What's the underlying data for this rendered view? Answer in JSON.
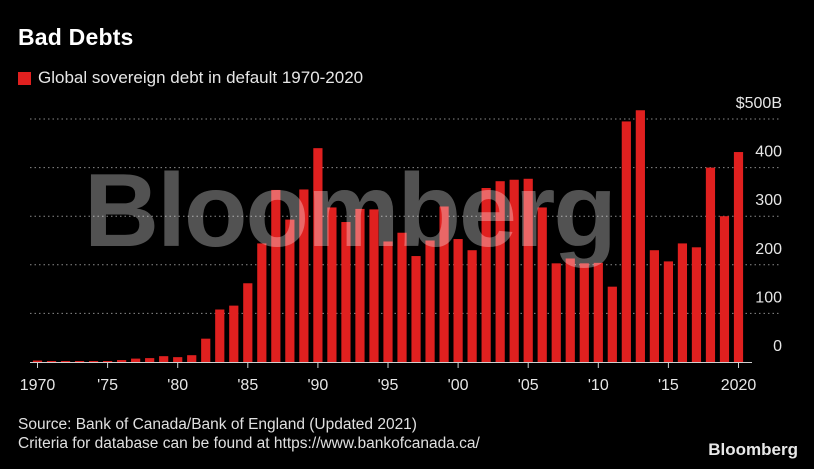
{
  "title": "Bad Debts",
  "watermark": "Bloomberg",
  "brand": "Bloomberg",
  "source_lines": [
    "Source: Bank of Canada/Bank of England (Updated 2021)",
    "Criteria for database can be found at https://www.bankofcanada.ca/"
  ],
  "colors": {
    "bar": "#e0201f",
    "background": "#000000",
    "grid": "#8a8a8a"
  },
  "chart_data": {
    "type": "bar",
    "title": "Bad Debts",
    "series": [
      {
        "name": "Global sovereign debt in default 1970-2020",
        "x": [
          1970,
          1971,
          1972,
          1973,
          1974,
          1975,
          1976,
          1977,
          1978,
          1979,
          1980,
          1981,
          1982,
          1983,
          1984,
          1985,
          1986,
          1987,
          1988,
          1989,
          1990,
          1991,
          1992,
          1993,
          1994,
          1995,
          1996,
          1997,
          1998,
          1999,
          2000,
          2001,
          2002,
          2003,
          2004,
          2005,
          2006,
          2007,
          2008,
          2009,
          2010,
          2011,
          2012,
          2013,
          2014,
          2015,
          2016,
          2017,
          2018,
          2019,
          2020
        ],
        "values": [
          3,
          2,
          2,
          2,
          2,
          2,
          4,
          7,
          8,
          12,
          10,
          14,
          48,
          108,
          116,
          162,
          244,
          354,
          293,
          355,
          440,
          318,
          288,
          315,
          314,
          248,
          266,
          218,
          250,
          320,
          253,
          230,
          358,
          372,
          375,
          377,
          318,
          203,
          213,
          203,
          204,
          155,
          495,
          518,
          230,
          207,
          244,
          236,
          400,
          300,
          432
        ]
      }
    ],
    "y_axis": {
      "min": 0,
      "max": 500,
      "ticks": [
        0,
        100,
        200,
        300,
        400,
        500
      ],
      "tick_labels": [
        "0",
        "100",
        "200",
        "300",
        "400",
        "$500B"
      ],
      "position": "right"
    },
    "x_axis": {
      "ticks": [
        1970,
        1975,
        1980,
        1985,
        1990,
        1995,
        2000,
        2005,
        2010,
        2015,
        2020
      ],
      "tick_labels": [
        "1970",
        "'75",
        "'80",
        "'85",
        "'90",
        "'95",
        "'00",
        "'05",
        "'10",
        "'15",
        "2020"
      ]
    },
    "grid": true,
    "legend_position": "top-left"
  }
}
